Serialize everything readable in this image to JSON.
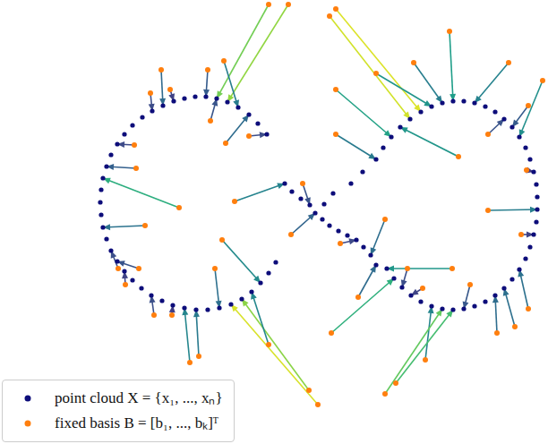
{
  "chart_data": {
    "type": "scatter",
    "xlim": [
      0,
      612
    ],
    "ylim": [
      0,
      496
    ],
    "tick_labels": false,
    "legend": "lower left",
    "series": [
      {
        "name": "point cloud X = {x₁, ..., xₙ}",
        "color": "#0d0d7a",
        "marker": "circle",
        "x": [
          298,
          288,
          278,
          266,
          254,
          242,
          230,
          218,
          206,
          194,
          182,
          170,
          159,
          148,
          139,
          131,
          124,
          119,
          115,
          113,
          112,
          113,
          115,
          119,
          124,
          131,
          139,
          148,
          158,
          169,
          181,
          193,
          206,
          219,
          232,
          245,
          258,
          270,
          281,
          291,
          300,
          308,
          318,
          326,
          336,
          346,
          352,
          362,
          372,
          360,
          368,
          378,
          388,
          398,
          406,
          414,
          420,
          392,
          405,
          420,
          428,
          437,
          447,
          458,
          470,
          482,
          494,
          506,
          518,
          530,
          542,
          553,
          563,
          572,
          580,
          587,
          592,
          596,
          599,
          600,
          600,
          599,
          596,
          592,
          587,
          580,
          572,
          563,
          553,
          542,
          530,
          518,
          506,
          494,
          482,
          470,
          459,
          449,
          440,
          432
        ],
        "y": [
          346,
          358,
          368,
          376,
          382,
          386,
          388,
          388,
          386,
          383,
          378,
          372,
          365,
          356,
          346,
          335,
          323,
          310,
          297,
          284,
          270,
          256,
          242,
          229,
          216,
          204,
          193,
          183,
          174,
          166,
          160,
          155,
          152,
          150,
          150,
          152,
          156,
          162,
          170,
          180,
          191,
          203,
          291,
          282,
          274,
          267,
          258,
          268,
          280,
          251,
          244,
          238,
          233,
          228,
          220,
          211,
          200,
          291,
          304,
          318,
          331,
          343,
          354,
          363,
          371,
          377,
          381,
          383,
          383,
          381,
          377,
          371,
          363,
          354,
          343,
          331,
          318,
          304,
          290,
          276,
          262,
          248,
          234,
          220,
          207,
          195,
          184,
          174,
          166,
          159,
          154,
          151,
          150,
          151,
          154,
          159,
          166,
          175,
          185,
          196
        ]
      },
      {
        "name": "fixed basis B = [b₁, ..., bₖ]ᵀ",
        "color": "#ff7f0e",
        "marker": "circle",
        "x": [
          180,
          232,
          300,
          322,
          250,
          190,
          168,
          252,
          200,
          152,
          150,
          162,
          132,
          155,
          140,
          172,
          192,
          212,
          222,
          248,
          355,
          345,
          300,
          240,
          325,
          262,
          278,
          235,
          375,
          368,
          420,
          462,
          502,
          568,
          606,
          590,
          512,
          545,
          375,
          375,
          545,
          588,
          582,
          505,
          472,
          590,
          555,
          575,
          475,
          430,
          442,
          370,
          400,
          380,
          338,
          525,
          455,
          430
        ],
        "y": [
          418,
          418,
          491,
          491,
          428,
          396,
          392,
          336,
          264,
          308,
          334,
          244,
          196,
          196,
          178,
          144,
          144,
          91,
          98,
          228,
          44,
          60,
          111,
          196,
          234,
          271,
          344,
          361,
          486,
          478,
          414,
          426,
          461,
          426,
          406,
          378,
          321,
          346,
          396,
          346,
          261,
          306,
          234,
          196,
          174,
          151,
          124,
          131,
          94,
          56,
          68,
          124,
          164,
          224,
          291,
          178,
          196,
          251
        ],
        "arrow_to_x": [
          182,
          230,
          242,
          254,
          266,
          194,
          170,
          278,
          115,
          119,
          131,
          115,
          124,
          131,
          139,
          169,
          193,
          206,
          219,
          291,
          258,
          270,
          281,
          245,
          352,
          318,
          298,
          242,
          470,
          458,
          482,
          494,
          506,
          530,
          580,
          572,
          447,
          563,
          437,
          420,
          600,
          596,
          596,
          432,
          459,
          580,
          553,
          563,
          482,
          494,
          506,
          440,
          420,
          398,
          346,
          518,
          449,
          414
        ],
        "arrow_to_y": [
          378,
          388,
          386,
          382,
          376,
          383,
          372,
          368,
          297,
          310,
          335,
          242,
          216,
          204,
          193,
          166,
          155,
          152,
          150,
          180,
          156,
          162,
          170,
          152,
          258,
          291,
          346,
          386,
          371,
          363,
          377,
          381,
          383,
          381,
          343,
          354,
          354,
          363,
          343,
          318,
          262,
          304,
          234,
          196,
          166,
          195,
          166,
          174,
          154,
          151,
          150,
          185,
          200,
          228,
          267,
          151,
          175,
          211
        ]
      }
    ]
  }
}
